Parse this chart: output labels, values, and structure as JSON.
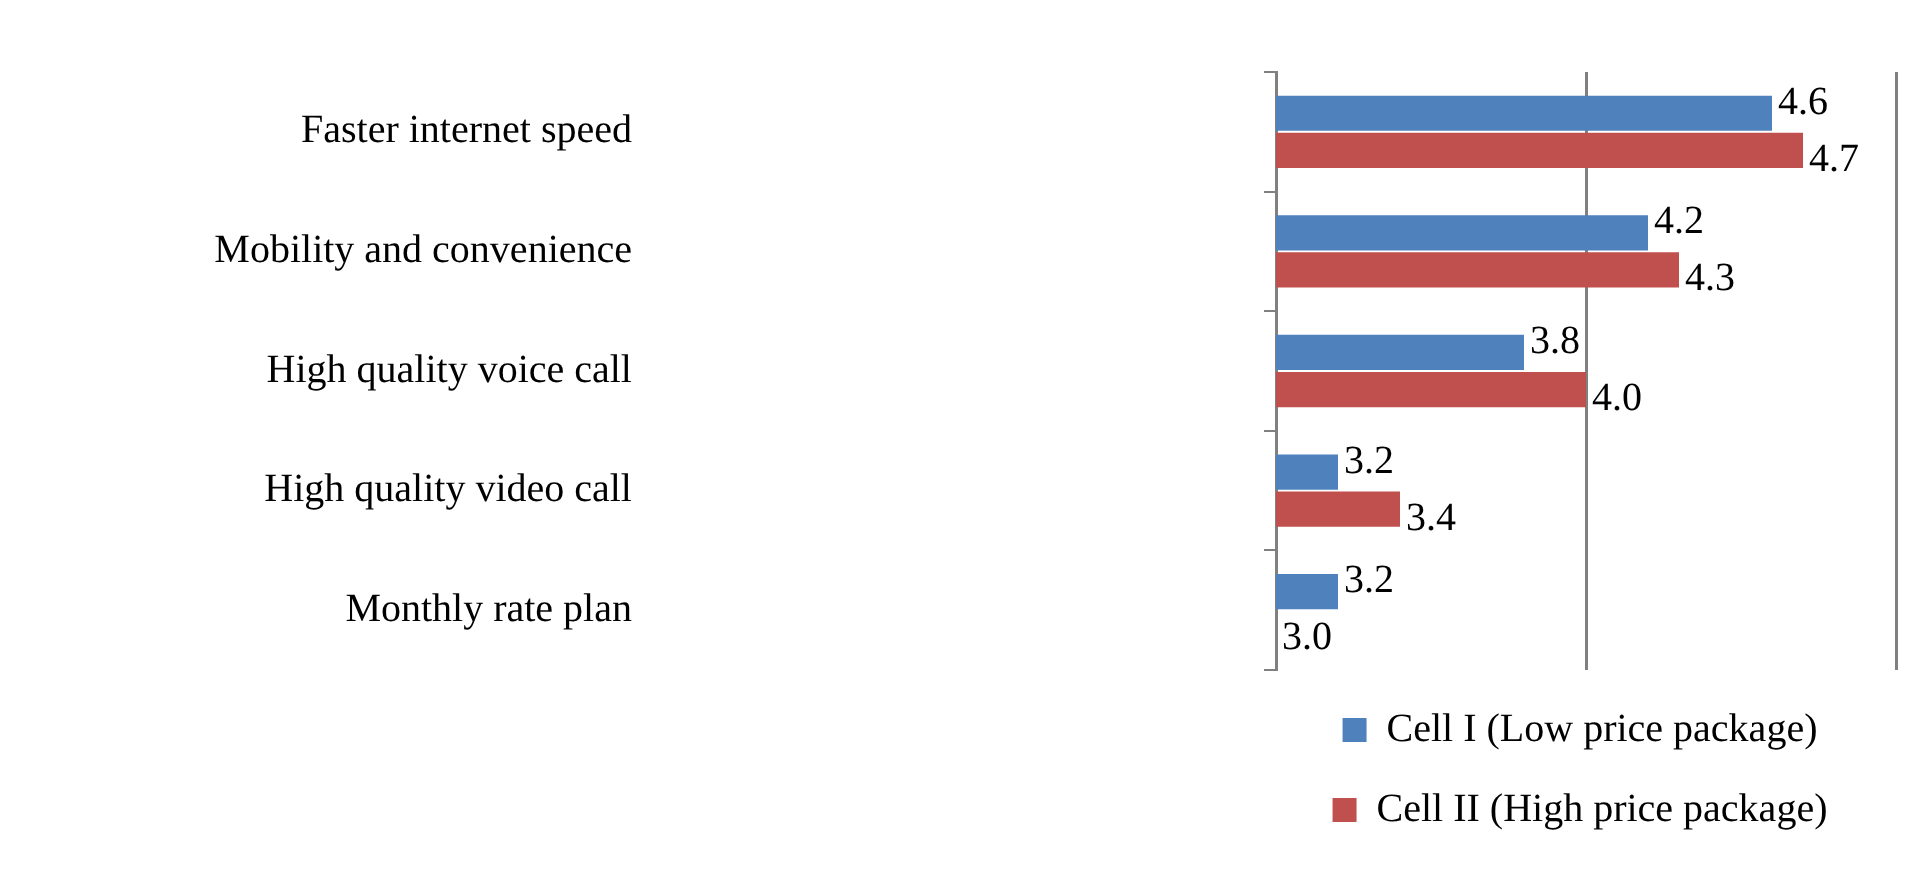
{
  "chart_data": {
    "type": "bar",
    "orientation": "horizontal",
    "categories": [
      "Faster internet speed",
      "Mobility and convenience",
      "High quality voice call",
      "High quality video call",
      "Monthly rate plan"
    ],
    "series": [
      {
        "name": "Cell I (Low price package)",
        "color": "#4f81bd",
        "values": [
          4.6,
          4.2,
          3.8,
          3.2,
          3.2
        ],
        "value_labels": [
          "4.6",
          "4.2",
          "3.8",
          "3.2",
          "3.2"
        ]
      },
      {
        "name": "Cell II (High price package)",
        "color": "#c0504d",
        "values": [
          4.7,
          4.3,
          4.0,
          3.4,
          3.0
        ],
        "value_labels": [
          "4.7",
          "4.3",
          "4.0",
          "3.4",
          "3.0"
        ]
      }
    ],
    "xlim": [
      3,
      5
    ],
    "xticks": [
      {
        "value": 3,
        "label": null
      },
      {
        "value": 4,
        "label": null
      },
      {
        "value": 5,
        "label": null
      }
    ],
    "grid": "x",
    "tick_labels": "y",
    "legend": "bottom"
  }
}
